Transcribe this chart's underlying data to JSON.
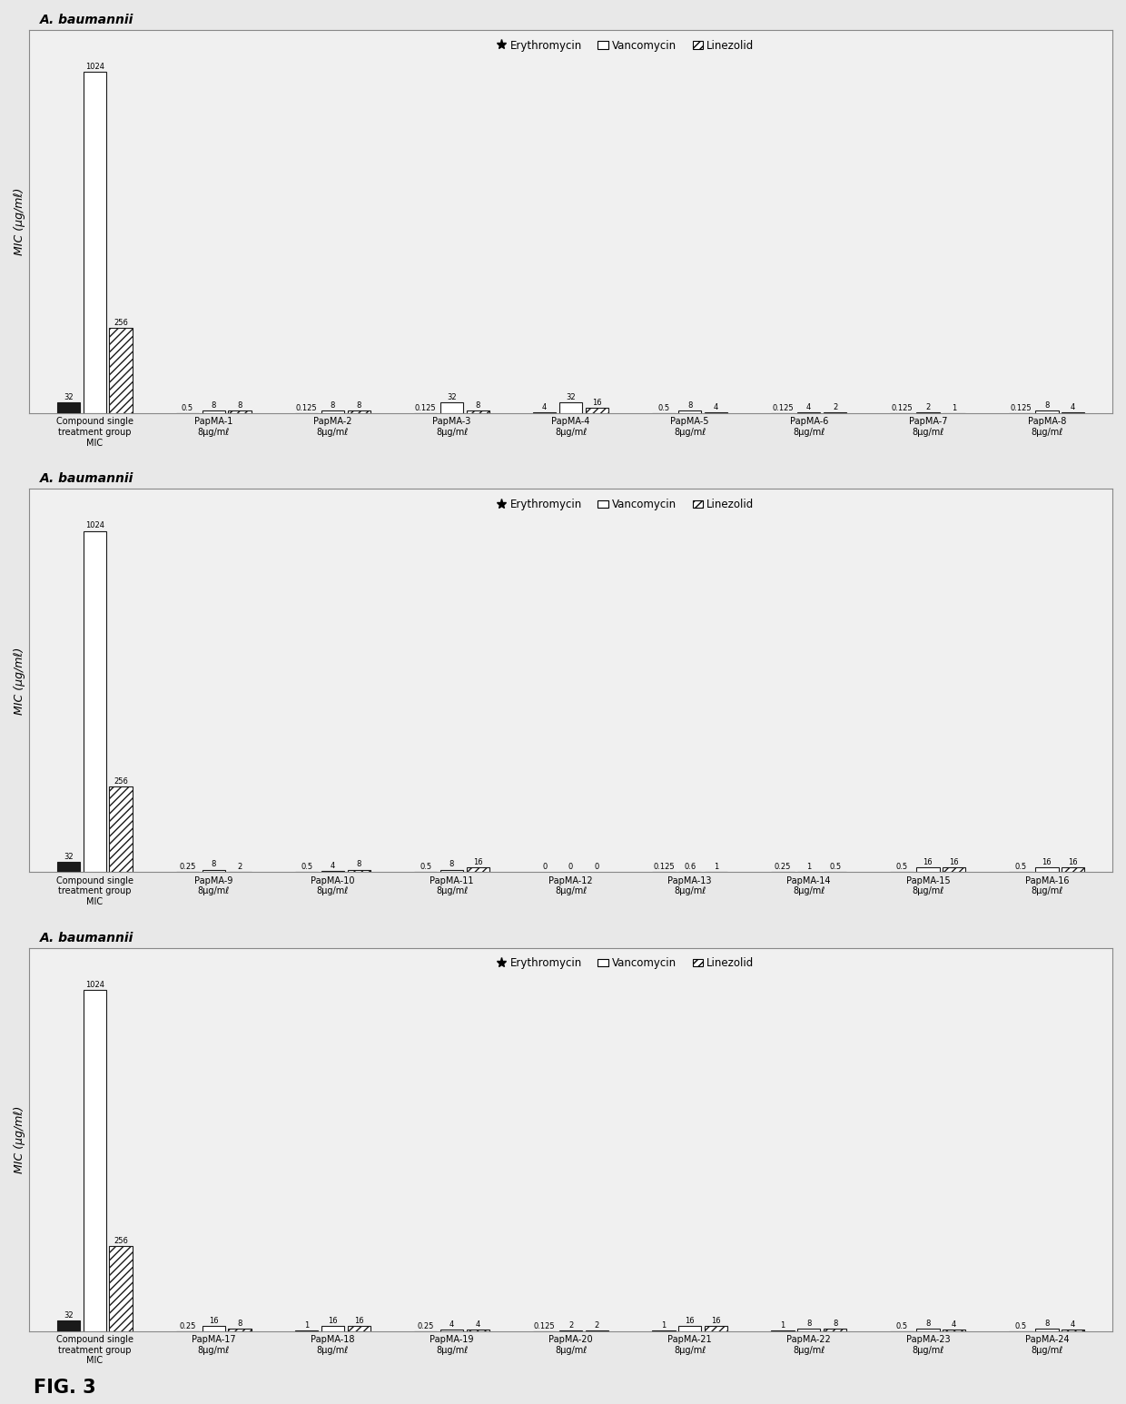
{
  "panels": [
    {
      "title": "A. baumannii",
      "ylabel": "MIC (μg/mℓ)",
      "groups": [
        {
          "label": "Compound single\ntreatment group\nMIC",
          "bars": [
            {
              "val": 32
            },
            {
              "val": 1024
            },
            {
              "val": 256
            }
          ]
        },
        {
          "label": "PapMA-1\n8μg/mℓ",
          "bars": [
            {
              "val": 0.5
            },
            {
              "val": 8
            },
            {
              "val": 8
            }
          ]
        },
        {
          "label": "PapMA-2\n8μg/mℓ",
          "bars": [
            {
              "val": 0.125
            },
            {
              "val": 8
            },
            {
              "val": 8
            }
          ]
        },
        {
          "label": "PapMA-3\n8μg/mℓ",
          "bars": [
            {
              "val": 0.125
            },
            {
              "val": 32
            },
            {
              "val": 8
            }
          ]
        },
        {
          "label": "PapMA-4\n8μg/mℓ",
          "bars": [
            {
              "val": 4
            },
            {
              "val": 32
            },
            {
              "val": 16
            }
          ]
        },
        {
          "label": "PapMA-5\n8μg/mℓ",
          "bars": [
            {
              "val": 0.5
            },
            {
              "val": 8
            },
            {
              "val": 4
            }
          ]
        },
        {
          "label": "PapMA-6\n8μg/mℓ",
          "bars": [
            {
              "val": 0.125
            },
            {
              "val": 4
            },
            {
              "val": 2
            }
          ]
        },
        {
          "label": "PapMA-7\n8μg/mℓ",
          "bars": [
            {
              "val": 0.125
            },
            {
              "val": 2
            },
            {
              "val": 1
            }
          ]
        },
        {
          "label": "PapMA-8\n8μg/mℓ",
          "bars": [
            {
              "val": 0.125
            },
            {
              "val": 8
            },
            {
              "val": 4
            }
          ]
        }
      ]
    },
    {
      "title": "A. baumannii",
      "ylabel": "MIC (μg/mℓ)",
      "groups": [
        {
          "label": "Compound single\ntreatment group\nMIC",
          "bars": [
            {
              "val": 32
            },
            {
              "val": 1024
            },
            {
              "val": 256
            }
          ]
        },
        {
          "label": "PapMA-9\n8μg/mℓ",
          "bars": [
            {
              "val": 0.25
            },
            {
              "val": 8
            },
            {
              "val": 2
            }
          ]
        },
        {
          "label": "PapMA-10\n8μg/mℓ",
          "bars": [
            {
              "val": 0.5
            },
            {
              "val": 4
            },
            {
              "val": 8
            }
          ]
        },
        {
          "label": "PapMA-11\n8μg/mℓ",
          "bars": [
            {
              "val": 0.5
            },
            {
              "val": 8
            },
            {
              "val": 16
            }
          ]
        },
        {
          "label": "PapMA-12\n8μg/mℓ",
          "bars": [
            {
              "val": 0.001
            },
            {
              "val": 0.001
            },
            {
              "val": 0.001
            }
          ]
        },
        {
          "label": "PapMA-13\n8μg/mℓ",
          "bars": [
            {
              "val": 0.125
            },
            {
              "val": 0.6
            },
            {
              "val": 1
            }
          ]
        },
        {
          "label": "PapMA-14\n8μg/mℓ",
          "bars": [
            {
              "val": 0.25
            },
            {
              "val": 1
            },
            {
              "val": 0.5
            }
          ]
        },
        {
          "label": "PapMA-15\n8μg/mℓ",
          "bars": [
            {
              "val": 0.5
            },
            {
              "val": 16
            },
            {
              "val": 16
            }
          ]
        },
        {
          "label": "PapMA-16\n8μg/mℓ",
          "bars": [
            {
              "val": 0.5
            },
            {
              "val": 16
            },
            {
              "val": 16
            }
          ]
        }
      ]
    },
    {
      "title": "A. baumannii",
      "ylabel": "MIC (μg/mℓ)",
      "groups": [
        {
          "label": "Compound single\ntreatment group\nMIC",
          "bars": [
            {
              "val": 32
            },
            {
              "val": 1024
            },
            {
              "val": 256
            }
          ]
        },
        {
          "label": "PapMA-17\n8μg/mℓ",
          "bars": [
            {
              "val": 0.25
            },
            {
              "val": 16
            },
            {
              "val": 8
            }
          ]
        },
        {
          "label": "PapMA-18\n8μg/mℓ",
          "bars": [
            {
              "val": 1
            },
            {
              "val": 16
            },
            {
              "val": 16
            }
          ]
        },
        {
          "label": "PapMA-19\n8μg/mℓ",
          "bars": [
            {
              "val": 0.25
            },
            {
              "val": 4
            },
            {
              "val": 4
            }
          ]
        },
        {
          "label": "PapMA-20\n8μg/mℓ",
          "bars": [
            {
              "val": 0.125
            },
            {
              "val": 2
            },
            {
              "val": 2
            }
          ]
        },
        {
          "label": "PapMA-21\n8μg/mℓ",
          "bars": [
            {
              "val": 1
            },
            {
              "val": 16
            },
            {
              "val": 16
            }
          ]
        },
        {
          "label": "PapMA-22\n8μg/mℓ",
          "bars": [
            {
              "val": 1
            },
            {
              "val": 8
            },
            {
              "val": 8
            }
          ]
        },
        {
          "label": "PapMA-23\n8μg/mℓ",
          "bars": [
            {
              "val": 0.5
            },
            {
              "val": 8
            },
            {
              "val": 4
            }
          ]
        },
        {
          "label": "PapMA-24\n8μg/mℓ",
          "bars": [
            {
              "val": 0.5
            },
            {
              "val": 8
            },
            {
              "val": 4
            }
          ]
        }
      ]
    }
  ],
  "panel12_labels": [
    "0",
    "0",
    "0"
  ],
  "fig_label": "FIG. 3",
  "bar_width": 0.22,
  "background_color": "#e8e8e8",
  "panel_bg": "#f0f0f0",
  "ylim": 1150,
  "bar_colors": [
    "#1a1a1a",
    "#ffffff",
    "#ffffff"
  ],
  "bar_hatches": [
    "",
    "",
    "////"
  ],
  "bar_edgecolors": [
    "#1a1a1a",
    "#1a1a1a",
    "#1a1a1a"
  ]
}
